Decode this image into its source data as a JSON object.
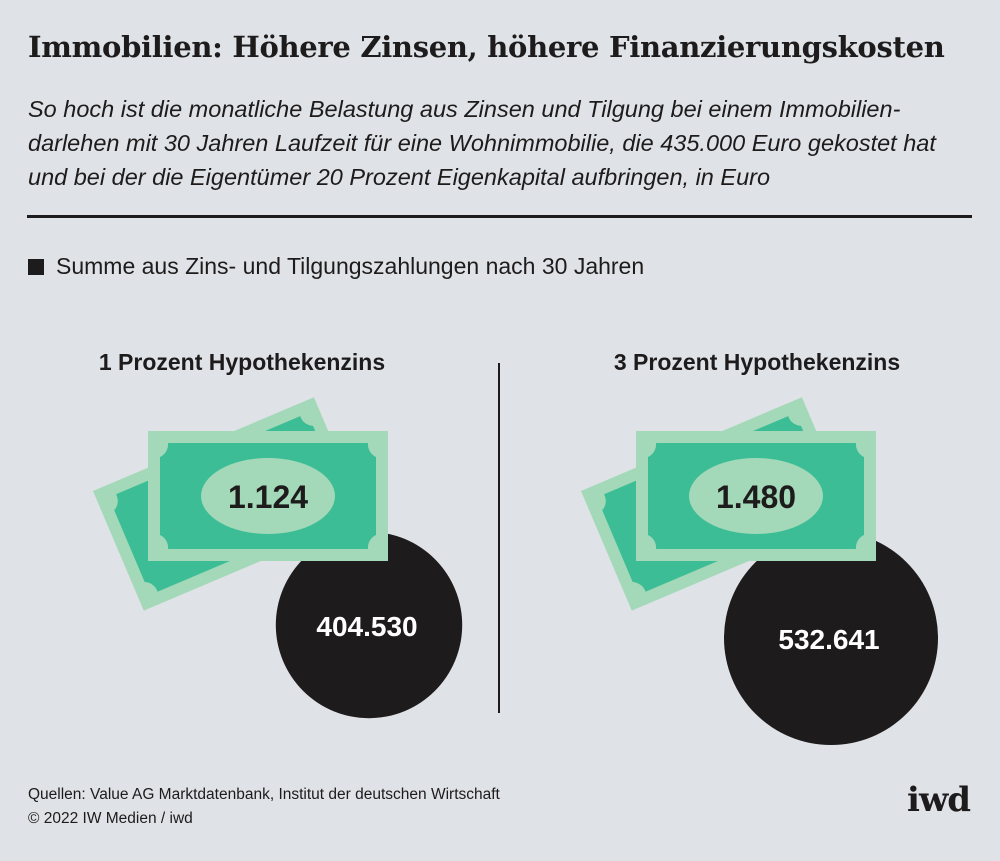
{
  "title": "Immobilien: Höhere Zinsen, höhere Finanzierungskosten",
  "subtitle": "So hoch ist die monatliche Belastung aus Zinsen und Tilgung bei einem Immobilien­darlehen mit 30 Jahren Laufzeit für eine Wohnimmobilie, die 435.000 Euro gekostet hat und bei der die Eigentümer 20 Prozent Eigenkapital aufbringen, in Euro",
  "legend": "Summe aus Zins- und Tilgungszahlungen nach 30 Jahren",
  "colors": {
    "background": "#dfe2e6",
    "bill_light": "#a3d9b8",
    "bill_dark": "#3dbd96",
    "circle": "#1d1b1b"
  },
  "chart_data": {
    "type": "table",
    "unit": "Euro",
    "panels": [
      {
        "label": "1 Prozent Hypothekenzins",
        "monthly": 1124,
        "monthly_label": "1.124",
        "total": 404530,
        "total_label": "404.530"
      },
      {
        "label": "3 Prozent Hypothekenzins",
        "monthly": 1480,
        "monthly_label": "1.480",
        "total": 532641,
        "total_label": "532.641"
      }
    ]
  },
  "footer": {
    "source": "Quellen: Value AG Marktdatenbank, Institut der deutschen Wirtschaft",
    "copyright": "© 2022 IW Medien / iwd"
  },
  "logo": "iwd"
}
